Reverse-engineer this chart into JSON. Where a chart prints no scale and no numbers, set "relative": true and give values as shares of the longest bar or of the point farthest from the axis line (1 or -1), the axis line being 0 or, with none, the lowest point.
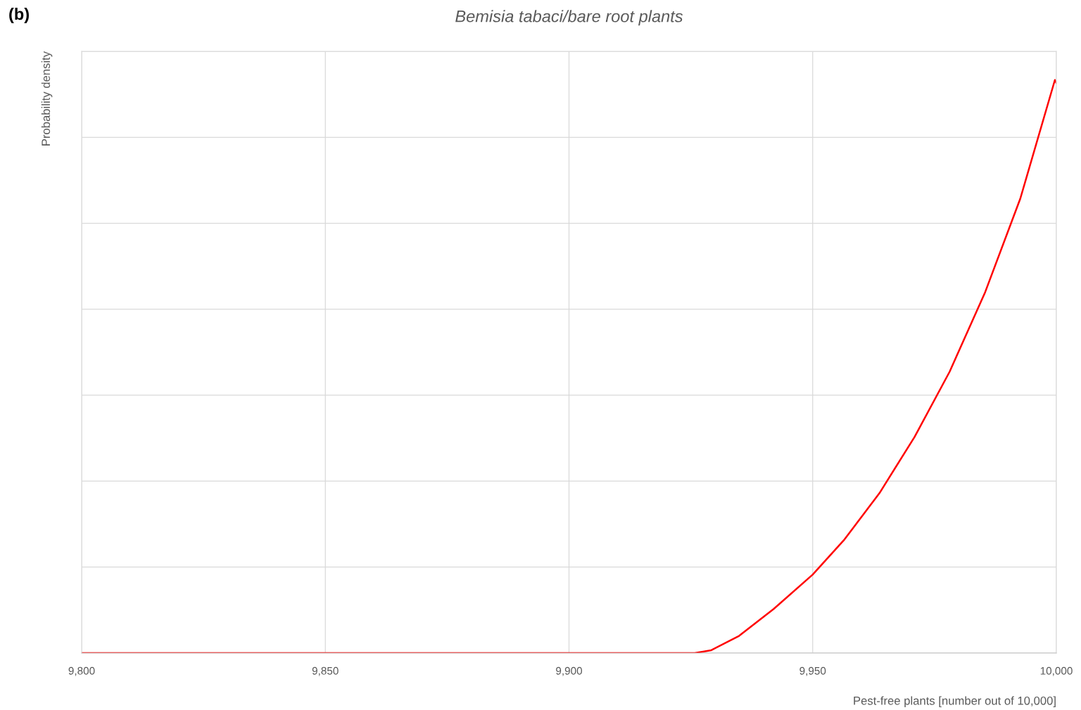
{
  "chart_data": {
    "type": "line",
    "title": "Bemisia tabaci/bare root plants",
    "xlabel": "Pest-free plants [number out of 10,000]",
    "ylabel": "Probability density",
    "annotations": [
      "(b)"
    ],
    "relative": true,
    "grid": true,
    "legend": false,
    "marker": "none",
    "line_style": "solid",
    "xlim": [
      9800,
      10000
    ],
    "xticks": [
      {
        "value": 9800,
        "label": "9,800"
      },
      {
        "value": 9850,
        "label": "9,850"
      },
      {
        "value": 9900,
        "label": "9,900"
      },
      {
        "value": 9950,
        "label": "9,950"
      },
      {
        "value": 10000,
        "label": "10,000"
      }
    ],
    "series": [
      {
        "color": "#ff0000",
        "x": [
          9800,
          9925.8,
          9929.2,
          9934.9,
          9942.0,
          9950.0,
          9956.5,
          9963.7,
          9970.9,
          9978.1,
          9985.4,
          9992.6,
          9999.7,
          10000
        ],
        "values": [
          0,
          0,
          0.005,
          0.03,
          0.077,
          0.137,
          0.198,
          0.279,
          0.377,
          0.491,
          0.63,
          0.793,
          1.0,
          0.995
        ]
      }
    ]
  }
}
